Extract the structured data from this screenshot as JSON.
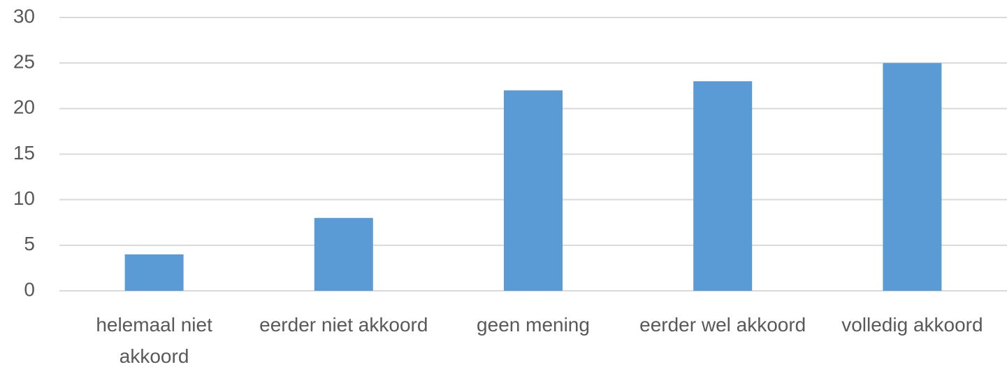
{
  "chart_data": {
    "type": "bar",
    "categories": [
      "helemaal niet akkoord",
      "eerder niet akkoord",
      "geen mening",
      "eerder wel akkoord",
      "volledig akkoord"
    ],
    "values": [
      4,
      8,
      22,
      23,
      25
    ],
    "color": "#5b9bd5",
    "ylim": [
      0,
      30
    ],
    "yticks": [
      0,
      5,
      10,
      15,
      20,
      25,
      30
    ],
    "grid": true
  }
}
